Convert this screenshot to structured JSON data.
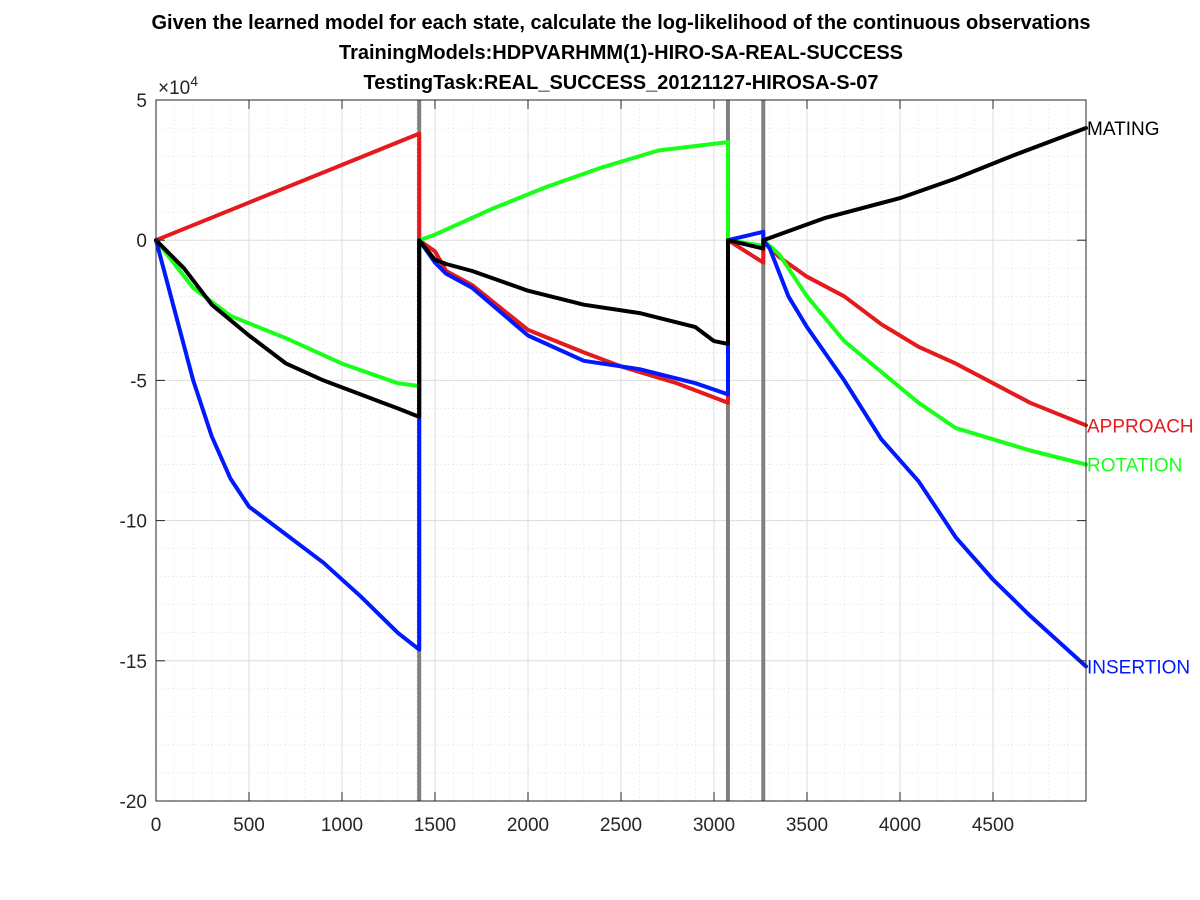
{
  "chart_data": {
    "type": "line",
    "title": [
      "Given the learned model for each state, calculate the log-likelihood of the continuous observations",
      "TrainingModels:HDPVARHMM(1)-HIRO-SA-REAL-SUCCESS",
      "TestingTask:REAL_SUCCESS_20121127-HIROSA-S-07"
    ],
    "xlim": [
      0,
      5000
    ],
    "ylim": [
      -200000,
      50000
    ],
    "xticks": [
      0,
      500,
      1000,
      1500,
      2000,
      2500,
      3000,
      3500,
      4000,
      4500
    ],
    "xtick_labels": [
      "0",
      "500",
      "1000",
      "1500",
      "2000",
      "2500",
      "3000",
      "3500",
      "4000",
      "4500"
    ],
    "yticks": [
      50000,
      0,
      -50000,
      -100000,
      -150000,
      -200000
    ],
    "ytick_labels": [
      "5",
      "0",
      "-5",
      "-10",
      "-15",
      "-20"
    ],
    "y_exponent_label": "×10",
    "y_exponent_power": "4",
    "grid": true,
    "minor_grid": true,
    "state_boundaries": [
      1415,
      3075,
      3265
    ],
    "boundary_color": "#808080",
    "series": [
      {
        "name": "APPROACH",
        "color": "#e41a1c",
        "points": [
          [
            0,
            0
          ],
          [
            1415,
            38000
          ],
          [
            1415,
            0
          ],
          [
            1500,
            -4000
          ],
          [
            1560,
            -11000
          ],
          [
            1700,
            -16000
          ],
          [
            2000,
            -32000
          ],
          [
            2300,
            -40000
          ],
          [
            2500,
            -45000
          ],
          [
            2800,
            -51000
          ],
          [
            3075,
            -58000
          ],
          [
            3075,
            0
          ],
          [
            3265,
            -8000
          ],
          [
            3265,
            0
          ],
          [
            3350,
            -6000
          ],
          [
            3500,
            -13000
          ],
          [
            3700,
            -20000
          ],
          [
            3900,
            -30000
          ],
          [
            4100,
            -38000
          ],
          [
            4300,
            -44000
          ],
          [
            4500,
            -51000
          ],
          [
            4700,
            -58000
          ],
          [
            5000,
            -66000
          ]
        ]
      },
      {
        "name": "ROTATION",
        "color": "#19ff19",
        "points": [
          [
            0,
            0
          ],
          [
            200,
            -17000
          ],
          [
            400,
            -27000
          ],
          [
            700,
            -35000
          ],
          [
            1000,
            -44000
          ],
          [
            1300,
            -51000
          ],
          [
            1415,
            -52000
          ],
          [
            1415,
            0
          ],
          [
            1500,
            2000
          ],
          [
            1800,
            11000
          ],
          [
            2100,
            19000
          ],
          [
            2400,
            26000
          ],
          [
            2700,
            32000
          ],
          [
            3075,
            35000
          ],
          [
            3075,
            0
          ],
          [
            3265,
            -2000
          ],
          [
            3265,
            0
          ],
          [
            3350,
            -5000
          ],
          [
            3500,
            -20000
          ],
          [
            3700,
            -36000
          ],
          [
            3900,
            -47000
          ],
          [
            4100,
            -58000
          ],
          [
            4300,
            -67000
          ],
          [
            4500,
            -71000
          ],
          [
            4700,
            -75000
          ],
          [
            5000,
            -80000
          ]
        ]
      },
      {
        "name": "INSERTION",
        "color": "#0019ff",
        "points": [
          [
            0,
            0
          ],
          [
            100,
            -25000
          ],
          [
            200,
            -50000
          ],
          [
            300,
            -70000
          ],
          [
            400,
            -85000
          ],
          [
            500,
            -95000
          ],
          [
            700,
            -105000
          ],
          [
            900,
            -115000
          ],
          [
            1100,
            -127000
          ],
          [
            1300,
            -140000
          ],
          [
            1415,
            -146000
          ],
          [
            1415,
            0
          ],
          [
            1500,
            -8000
          ],
          [
            1560,
            -12000
          ],
          [
            1700,
            -17000
          ],
          [
            2000,
            -34000
          ],
          [
            2300,
            -43000
          ],
          [
            2600,
            -46000
          ],
          [
            2900,
            -51000
          ],
          [
            3075,
            -55000
          ],
          [
            3075,
            0
          ],
          [
            3265,
            3000
          ],
          [
            3265,
            0
          ],
          [
            3300,
            -3000
          ],
          [
            3400,
            -20000
          ],
          [
            3500,
            -31000
          ],
          [
            3700,
            -50000
          ],
          [
            3900,
            -71000
          ],
          [
            4100,
            -86000
          ],
          [
            4300,
            -106000
          ],
          [
            4500,
            -121000
          ],
          [
            4700,
            -134000
          ],
          [
            5000,
            -152000
          ]
        ]
      },
      {
        "name": "MATING",
        "color": "#000000",
        "points": [
          [
            0,
            0
          ],
          [
            150,
            -10000
          ],
          [
            300,
            -23000
          ],
          [
            500,
            -34000
          ],
          [
            700,
            -44000
          ],
          [
            900,
            -50000
          ],
          [
            1100,
            -55000
          ],
          [
            1300,
            -60000
          ],
          [
            1415,
            -63000
          ],
          [
            1415,
            0
          ],
          [
            1500,
            -7000
          ],
          [
            1560,
            -8500
          ],
          [
            1700,
            -11000
          ],
          [
            2000,
            -18000
          ],
          [
            2300,
            -23000
          ],
          [
            2600,
            -26000
          ],
          [
            2900,
            -31000
          ],
          [
            3000,
            -36000
          ],
          [
            3075,
            -37000
          ],
          [
            3075,
            0
          ],
          [
            3265,
            -3000
          ],
          [
            3265,
            0
          ],
          [
            3600,
            8000
          ],
          [
            4000,
            15000
          ],
          [
            4300,
            22000
          ],
          [
            4600,
            30000
          ],
          [
            5000,
            40000
          ]
        ]
      }
    ]
  }
}
